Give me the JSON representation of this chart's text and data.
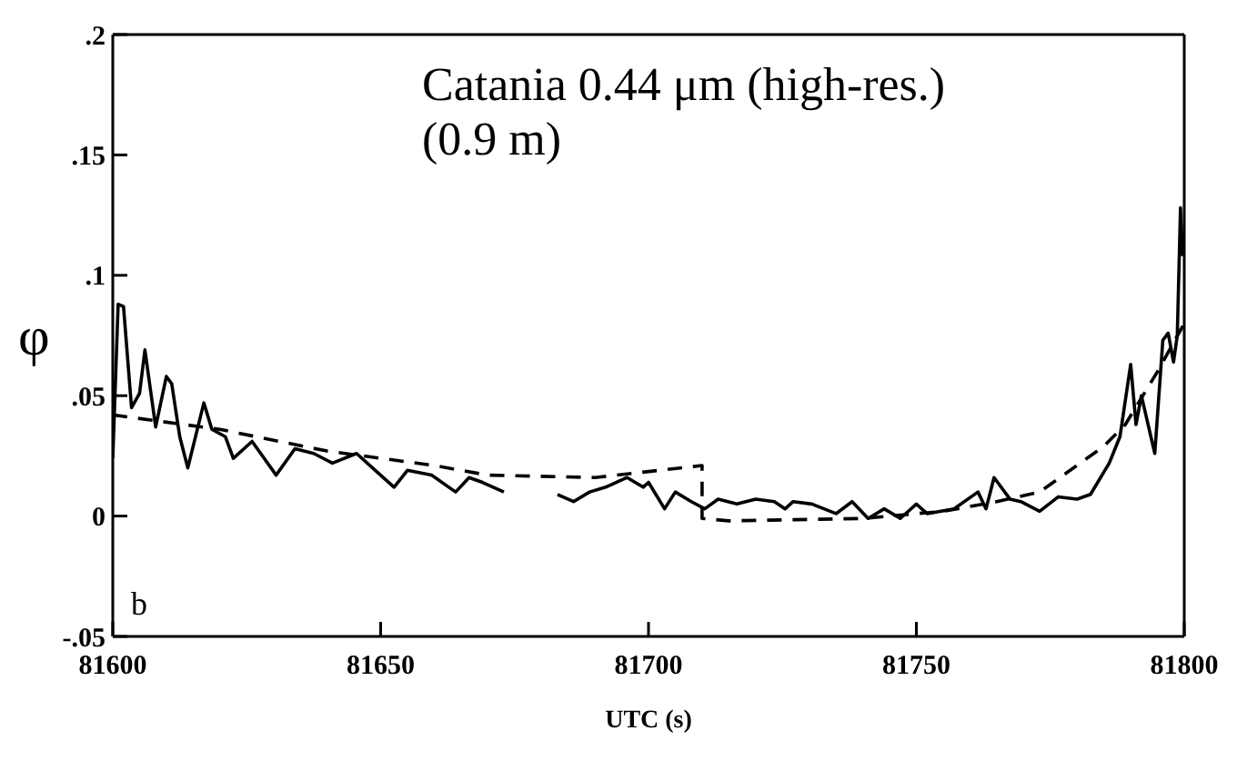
{
  "chart_data": {
    "type": "line",
    "title": "Catania 0.44 μm (high-res.)",
    "subtitle": "(0.9 m)",
    "xlabel": "UTC (s)",
    "ylabel": "φ",
    "annotations": [
      "b"
    ],
    "xlim": [
      81600,
      81800
    ],
    "xticks": [
      81600,
      81650,
      81700,
      81750,
      81800
    ],
    "ylim": [
      -0.05,
      0.2
    ],
    "yticks": [
      {
        "value": -0.05,
        "label": "-.05"
      },
      {
        "value": 0,
        "label": "0"
      },
      {
        "value": 0.05,
        "label": ".05"
      },
      {
        "value": 0.1,
        "label": ".1"
      },
      {
        "value": 0.15,
        "label": ".15"
      },
      {
        "value": 0.2,
        "label": ".2"
      }
    ],
    "marker": "none",
    "series": [
      {
        "color": "#000000",
        "line_style": "solid",
        "x": [
          81600,
          81601,
          81602,
          81603.5,
          81605,
          81606,
          81608,
          81610,
          81611,
          81612.5,
          81614,
          81617,
          81618.5,
          81621,
          81622.5,
          81626,
          81630.5,
          81634,
          81637.5,
          81641,
          81645.5,
          81649,
          81652.5,
          81655,
          81659.5,
          81664,
          81666.5,
          81669,
          81673,
          81678,
          81683,
          81686,
          81689,
          81692,
          81696,
          81699,
          81700,
          81703,
          81705,
          81708,
          81710.5,
          81713,
          81716.5,
          81720,
          81723.5,
          81725.5,
          81727,
          81730.5,
          81735,
          81738,
          81741,
          81744,
          81747,
          81750,
          81752,
          81757,
          81761.5,
          81763,
          81764.5,
          81767.5,
          81769.5,
          81773,
          81776.5,
          81780,
          81782.5,
          81786,
          81788,
          81790,
          81791,
          81792,
          81794.5,
          81796,
          81797,
          81798,
          81798.7,
          81799.3,
          81799.7
        ],
        "values": [
          0.024,
          0.088,
          0.087,
          0.045,
          0.051,
          0.069,
          0.037,
          0.058,
          0.055,
          0.033,
          0.02,
          0.047,
          0.036,
          0.033,
          0.024,
          0.031,
          0.017,
          0.028,
          0.026,
          0.022,
          0.026,
          0.019,
          0.012,
          0.019,
          0.017,
          0.01,
          0.016,
          0.014,
          0.01,
          null,
          0.009,
          0.006,
          0.01,
          0.012,
          0.016,
          0.012,
          0.014,
          0.003,
          0.01,
          0.006,
          0.003,
          0.007,
          0.005,
          0.007,
          0.006,
          0.003,
          0.006,
          0.005,
          0.001,
          0.006,
          -0.001,
          0.003,
          -0.001,
          0.005,
          0.001,
          0.003,
          0.01,
          0.003,
          0.016,
          0.007,
          0.006,
          0.002,
          0.008,
          0.007,
          0.009,
          0.022,
          0.033,
          0.063,
          0.038,
          0.05,
          0.026,
          0.073,
          0.076,
          0.064,
          0.075,
          0.128,
          0.108
        ]
      },
      {
        "color": "#000000",
        "line_style": "dashed",
        "x": [
          81600,
          81620,
          81640,
          81660,
          81670,
          81690,
          81710,
          81710,
          81715,
          81740,
          81755,
          81765,
          81773,
          81785,
          81789,
          81795,
          81800
        ],
        "values": [
          0.042,
          0.036,
          0.027,
          0.021,
          0.017,
          0.016,
          0.021,
          -0.001,
          -0.002,
          -0.001,
          0.002,
          0.006,
          0.01,
          0.029,
          0.038,
          0.06,
          0.08
        ]
      }
    ]
  }
}
